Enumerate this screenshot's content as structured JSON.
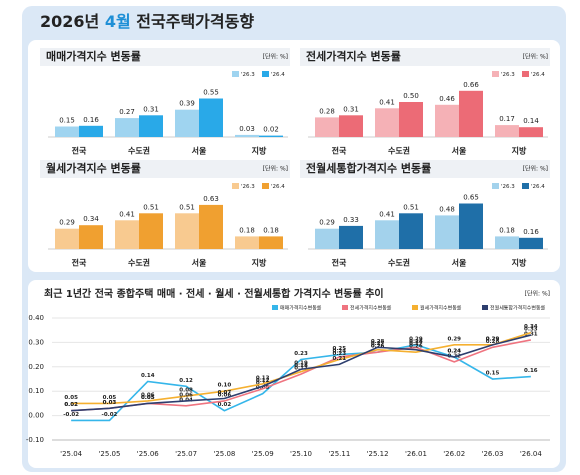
{
  "title": {
    "year": "2026년",
    "month": "4월",
    "text": "전국주택가격동향"
  },
  "chart_data": [
    {
      "type": "bar",
      "title": "매매가격지수 변동률",
      "unit": "[단위: %]",
      "categories": [
        "전국",
        "수도권",
        "서울",
        "지방"
      ],
      "series": [
        {
          "name": "'26.3",
          "color": "#9fd4f0",
          "values": [
            0.15,
            0.27,
            0.39,
            0.03
          ],
          "value_labels": [
            "0.15",
            "0.27",
            "0.39",
            "0.03"
          ]
        },
        {
          "name": "'26.4",
          "color": "#29a9e8",
          "values": [
            0.16,
            0.31,
            0.55,
            0.02
          ],
          "value_labels": [
            "0.16",
            "0.31",
            "0.55",
            "0.02"
          ]
        }
      ]
    },
    {
      "type": "bar",
      "title": "전세가격지수 변동률",
      "unit": "[단위: %]",
      "categories": [
        "전국",
        "수도권",
        "서울",
        "지방"
      ],
      "series": [
        {
          "name": "'26.3",
          "color": "#f5b1b6",
          "values": [
            0.28,
            0.41,
            0.46,
            0.17
          ],
          "value_labels": [
            "0.28",
            "0.41",
            "0.46",
            "0.17"
          ]
        },
        {
          "name": "'26.4",
          "color": "#ec6b76",
          "values": [
            0.31,
            0.5,
            0.66,
            0.14
          ],
          "value_labels": [
            "0.31",
            "0.50",
            "0.66",
            "0.14"
          ]
        }
      ]
    },
    {
      "type": "bar",
      "title": "월세가격지수 변동률",
      "unit": "[단위: %]",
      "categories": [
        "전국",
        "수도권",
        "서울",
        "지방"
      ],
      "series": [
        {
          "name": "'26.3",
          "color": "#f8ca90",
          "values": [
            0.29,
            0.41,
            0.51,
            0.18
          ],
          "value_labels": [
            "0.29",
            "0.41",
            "0.51",
            "0.18"
          ]
        },
        {
          "name": "'26.4",
          "color": "#f0a030",
          "values": [
            0.34,
            0.51,
            0.63,
            0.18
          ],
          "value_labels": [
            "0.34",
            "0.51",
            "0.63",
            "0.18"
          ]
        }
      ]
    },
    {
      "type": "bar",
      "title": "전월세통합가격지수 변동률",
      "unit": "[단위: %]",
      "categories": [
        "전국",
        "수도권",
        "서울",
        "지방"
      ],
      "series": [
        {
          "name": "'26.3",
          "color": "#a3d2ec",
          "values": [
            0.29,
            0.41,
            0.48,
            0.18
          ],
          "value_labels": [
            "0.29",
            "0.41",
            "0.48",
            "0.18"
          ]
        },
        {
          "name": "'26.4",
          "color": "#1f6fa8",
          "values": [
            0.33,
            0.51,
            0.65,
            0.16
          ],
          "value_labels": [
            "0.33",
            "0.51",
            "0.65",
            "0.16"
          ]
        }
      ]
    },
    {
      "type": "line",
      "title": "최근 1년간 전국 종합주택 매매 · 전세 · 월세 · 전월세통합 가격지수 변동률 추이",
      "unit": "[단위: %]",
      "categories": [
        "'25.04",
        "'25.05",
        "'25.06",
        "'25.07",
        "'25.08",
        "'25.09",
        "'25.10",
        "'25.11",
        "'25.12",
        "'26.01",
        "'26.02",
        "'26.03",
        "'26.04"
      ],
      "ylim": [
        -0.1,
        0.4
      ],
      "yticks": [
        {
          "value": -0.1,
          "label": "-0.10"
        },
        {
          "value": 0,
          "label": "0.00"
        },
        {
          "value": 0.1,
          "label": "0.10"
        },
        {
          "value": 0.2,
          "label": "0.20"
        },
        {
          "value": 0.3,
          "label": "0.30"
        },
        {
          "value": 0.4,
          "label": "0.40"
        }
      ],
      "grid": true,
      "series": [
        {
          "name": "매매가격지수변동률",
          "color": "#35b6ea",
          "values": [
            -0.02,
            -0.02,
            0.14,
            0.12,
            0.02,
            0.09,
            0.23,
            0.25,
            0.26,
            0.29,
            0.24,
            0.15,
            0.16
          ],
          "value_labels": [
            "-0.02",
            "-0.02",
            "0.14",
            "0.12",
            "0.02",
            "0.09",
            "0.23",
            "0.25",
            "0.26",
            "0.29",
            "0.24",
            "0.15",
            "0.16"
          ]
        },
        {
          "name": "전세가격지수변동률",
          "color": "#ef7480",
          "values": [
            0.02,
            0.03,
            0.05,
            0.04,
            0.06,
            0.11,
            0.17,
            0.24,
            0.26,
            0.28,
            0.22,
            0.28,
            0.31
          ],
          "value_labels": [
            "0.02",
            "0.03",
            "0.05",
            "0.04",
            "0.06",
            "0.11",
            "0.17",
            "0.24",
            "0.26",
            "0.28",
            "0.22",
            "0.28",
            "0.31"
          ]
        },
        {
          "name": "월세가격지수변동률",
          "color": "#f5b030",
          "values": [
            0.05,
            0.05,
            0.06,
            0.08,
            0.1,
            0.13,
            0.18,
            0.23,
            0.27,
            0.26,
            0.29,
            0.29,
            0.34
          ],
          "value_labels": [
            "0.05",
            "0.05",
            "0.06",
            "0.08",
            "0.10",
            "0.13",
            "0.18",
            "0.23",
            "0.27",
            "0.26",
            "0.29",
            "0.29",
            "0.34"
          ]
        },
        {
          "name": "전월세통합가격지수변동률",
          "color": "#2d3e6e",
          "values": [
            0.02,
            0.03,
            0.05,
            0.06,
            0.07,
            0.12,
            0.19,
            0.21,
            0.28,
            0.27,
            0.24,
            0.29,
            0.33
          ],
          "value_labels": [
            "0.02",
            "0.03",
            "0.05",
            "0.06",
            "0.07",
            "0.12",
            "0.19",
            "0.21",
            "0.28",
            "0.27",
            "0.24",
            "0.29",
            "0.33"
          ]
        }
      ]
    }
  ]
}
